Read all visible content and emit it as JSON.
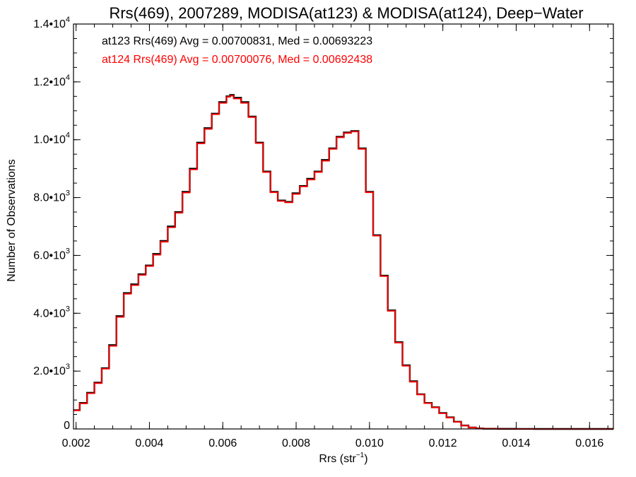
{
  "chart_data": {
    "type": "line",
    "title": "Rrs(469), 2007289, MODISA(at123) & MODISA(at124), Deep−Water",
    "xlabel_main": "Rrs (str",
    "xlabel_sup": "−1",
    "xlabel_end": ")",
    "ylabel": "Number of Observations",
    "xlim": [
      0.00193,
      0.01665
    ],
    "ylim": [
      0,
      14000
    ],
    "x_ticks": [
      {
        "value": 0.002,
        "label": "0.002"
      },
      {
        "value": 0.004,
        "label": "0.004"
      },
      {
        "value": 0.006,
        "label": "0.006"
      },
      {
        "value": 0.008,
        "label": "0.008"
      },
      {
        "value": 0.01,
        "label": "0.010"
      },
      {
        "value": 0.012,
        "label": "0.012"
      },
      {
        "value": 0.014,
        "label": "0.014"
      },
      {
        "value": 0.016,
        "label": "0.016"
      }
    ],
    "y_ticks": [
      {
        "value": 0,
        "base": "0",
        "exp": ""
      },
      {
        "value": 2000,
        "base": "2.0•10",
        "exp": "3"
      },
      {
        "value": 4000,
        "base": "4.0•10",
        "exp": "3"
      },
      {
        "value": 6000,
        "base": "6.0•10",
        "exp": "3"
      },
      {
        "value": 8000,
        "base": "8.0•10",
        "exp": "3"
      },
      {
        "value": 10000,
        "base": "1.0•10",
        "exp": "4"
      },
      {
        "value": 12000,
        "base": "1.2•10",
        "exp": "4"
      },
      {
        "value": 14000,
        "base": "1.4•10",
        "exp": "4"
      }
    ],
    "annotations": [
      {
        "text": "at123 Rrs(469) Avg = 0.00700831, Med = 0.00693223",
        "color": "#000000"
      },
      {
        "text": "at124 Rrs(469) Avg = 0.00700076, Med = 0.00692438",
        "color": "#ff0000"
      }
    ],
    "series": [
      {
        "color": "#000000",
        "x": [
          0.00193,
          0.0021,
          0.0023,
          0.0025,
          0.0027,
          0.0029,
          0.0031,
          0.0033,
          0.0035,
          0.0037,
          0.0039,
          0.0041,
          0.0043,
          0.0045,
          0.0047,
          0.0049,
          0.0051,
          0.0053,
          0.0055,
          0.0057,
          0.0059,
          0.0061,
          0.0062,
          0.0063,
          0.0065,
          0.0067,
          0.0069,
          0.0071,
          0.0073,
          0.0075,
          0.0077,
          0.0079,
          0.0081,
          0.0083,
          0.0085,
          0.0087,
          0.0089,
          0.0091,
          0.0093,
          0.0095,
          0.0097,
          0.0099,
          0.0101,
          0.0103,
          0.0105,
          0.0107,
          0.0109,
          0.0111,
          0.0113,
          0.0115,
          0.0117,
          0.0119,
          0.0121,
          0.0123,
          0.0125,
          0.0127,
          0.0129,
          0.0131,
          0.0135,
          0.014,
          0.0145,
          0.015,
          0.016,
          0.01665
        ],
        "y": [
          650,
          900,
          1250,
          1600,
          2100,
          2900,
          3900,
          4700,
          5000,
          5350,
          5650,
          6050,
          6500,
          7000,
          7500,
          8200,
          9000,
          9900,
          10400,
          10900,
          11300,
          11500,
          11550,
          11450,
          11300,
          10800,
          9900,
          8900,
          8200,
          7900,
          7850,
          8150,
          8400,
          8650,
          8900,
          9300,
          9700,
          10100,
          10250,
          10300,
          9700,
          8200,
          6700,
          5300,
          4100,
          3000,
          2200,
          1650,
          1200,
          900,
          750,
          550,
          400,
          250,
          120,
          50,
          20,
          8,
          3,
          1,
          0,
          0,
          0,
          0
        ]
      },
      {
        "color": "#ff0000",
        "x": [
          0.00193,
          0.0021,
          0.0023,
          0.0025,
          0.0027,
          0.0029,
          0.0031,
          0.0033,
          0.0035,
          0.0037,
          0.0039,
          0.0041,
          0.0043,
          0.0045,
          0.0047,
          0.0049,
          0.0051,
          0.0053,
          0.0055,
          0.0057,
          0.0059,
          0.0061,
          0.0062,
          0.0063,
          0.0065,
          0.0067,
          0.0069,
          0.0071,
          0.0073,
          0.0075,
          0.0077,
          0.0079,
          0.0081,
          0.0083,
          0.0085,
          0.0087,
          0.0089,
          0.0091,
          0.0093,
          0.0095,
          0.0097,
          0.0099,
          0.0101,
          0.0103,
          0.0105,
          0.0107,
          0.0109,
          0.0111,
          0.0113,
          0.0115,
          0.0117,
          0.0119,
          0.0121,
          0.0123,
          0.0125,
          0.0127,
          0.0129,
          0.0131,
          0.0135,
          0.014,
          0.0145,
          0.015,
          0.016,
          0.01665
        ],
        "y": [
          640,
          880,
          1230,
          1580,
          2080,
          2870,
          3870,
          4670,
          4970,
          5320,
          5630,
          6020,
          6470,
          6970,
          7470,
          8170,
          8970,
          9870,
          10370,
          10880,
          11270,
          11480,
          11520,
          11420,
          11270,
          10780,
          9880,
          8880,
          8180,
          7880,
          7830,
          8120,
          8380,
          8620,
          8880,
          9270,
          9680,
          10080,
          10230,
          10280,
          9680,
          8180,
          6680,
          5280,
          4080,
          2980,
          2180,
          1630,
          1190,
          890,
          740,
          540,
          390,
          245,
          115,
          48,
          18,
          7,
          3,
          1,
          0,
          0,
          0,
          0
        ]
      }
    ]
  }
}
